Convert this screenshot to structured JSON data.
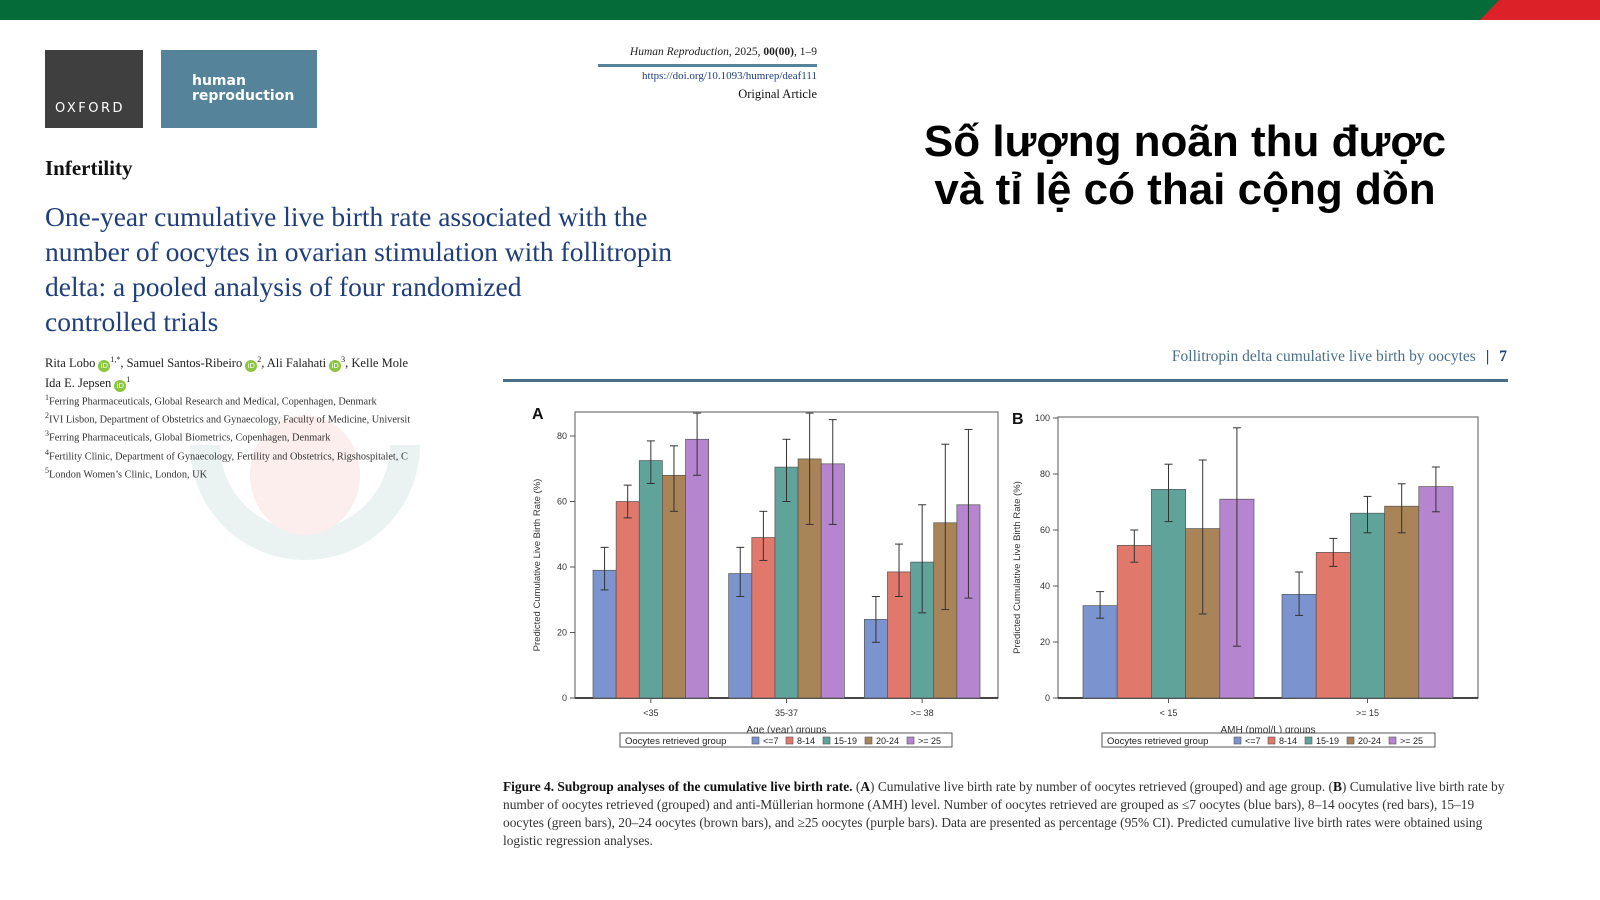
{
  "header": {
    "brand_colors": {
      "green": "#046b39",
      "red": "#dc2228"
    },
    "logo_oxford": "OXFORD",
    "logo_journal": "human reproduction",
    "journal_name": "Human Reproduction",
    "journal_year": ", 2025, ",
    "journal_issue": "00(00)",
    "journal_pages": ", 1–9",
    "doi": "https://doi.org/10.1093/humrep/deaf111",
    "article_type": "Original Article"
  },
  "slide_title": {
    "line1": "Số lượng noãn thu được",
    "line2": "và tỉ lệ có thai cộng dồn"
  },
  "paper": {
    "section": "Infertility",
    "title_lines": [
      "One-year cumulative live birth rate associated with the",
      "number of oocytes in ovarian stimulation with follitropin",
      "delta: a pooled analysis of four randomized",
      "controlled trials"
    ],
    "authors": [
      {
        "name": "Rita Lobo",
        "sup": "1,*",
        "sep": ", "
      },
      {
        "name": "Samuel Santos-Ribeiro",
        "sup": "2",
        "sep": ", "
      },
      {
        "name": "Ali Falahati",
        "sup": "3",
        "sep": ", "
      },
      {
        "name": "Kelle Mole",
        "sup": "",
        "sep": ""
      }
    ],
    "author_line2": {
      "name": "Ida E. Jepsen",
      "sup": "1"
    },
    "orcid_label": "iD",
    "affiliations": [
      {
        "sup": "1",
        "text": "Ferring Pharmaceuticals, Global Research and Medical, Copenhagen, Denmark"
      },
      {
        "sup": "2",
        "text": "IVI Lisbon, Department of Obstetrics and Gynaecology, Faculty of Medicine, Universit"
      },
      {
        "sup": "3",
        "text": "Ferring Pharmaceuticals, Global Biometrics, Copenhagen, Denmark"
      },
      {
        "sup": "4",
        "text": "Fertility Clinic, Department of Gynaecology, Fertility and Obstetrics, Rigshospitalet, C"
      },
      {
        "sup": "5",
        "text": "London Women’s Clinic, London, UK"
      }
    ]
  },
  "running_head": {
    "text": "Follitropin delta cumulative live birth by oocytes",
    "separator": "|",
    "page": "7"
  },
  "chart_data": [
    {
      "type": "bar",
      "panel": "A",
      "title": "",
      "xlabel": "Age (year) groups",
      "ylabel": "Predicted Cumulative Live Birth Rate (%)",
      "ylim": [
        0,
        87
      ],
      "yticks": [
        0,
        20,
        40,
        60,
        80
      ],
      "categories": [
        "<35",
        "35-37",
        ">= 38"
      ],
      "legend_title": "Oocytes retrieved group",
      "legend_position": "bottom",
      "series": [
        {
          "name": "<=7",
          "color": "#7b93cf",
          "values": [
            39,
            38,
            24
          ],
          "ci_low": [
            33,
            31,
            17
          ],
          "ci_high": [
            46,
            46,
            31
          ]
        },
        {
          "name": "8-14",
          "color": "#e0786b",
          "values": [
            60,
            49,
            38.5
          ],
          "ci_low": [
            55,
            42,
            31
          ],
          "ci_high": [
            65,
            57,
            47
          ]
        },
        {
          "name": "15-19",
          "color": "#5fa39a",
          "values": [
            72.5,
            70.5,
            41.5
          ],
          "ci_low": [
            65.5,
            60,
            26
          ],
          "ci_high": [
            78.5,
            79,
            59
          ]
        },
        {
          "name": "20-24",
          "color": "#a88458",
          "values": [
            68,
            73,
            53.5
          ],
          "ci_low": [
            57,
            53,
            27
          ],
          "ci_high": [
            77,
            87,
            77.5
          ]
        },
        {
          "name": ">= 25",
          "color": "#b586cf",
          "values": [
            79,
            71.5,
            59
          ],
          "ci_low": [
            68,
            53,
            30.5
          ],
          "ci_high": [
            87,
            85,
            82
          ]
        }
      ]
    },
    {
      "type": "bar",
      "panel": "B",
      "title": "",
      "xlabel": "AMH (pmol/L) groups",
      "ylabel": "Predicted Cumulative Live Birth Rate (%)",
      "ylim": [
        0,
        100
      ],
      "yticks": [
        0,
        20,
        40,
        60,
        80,
        100
      ],
      "categories": [
        "< 15",
        ">= 15"
      ],
      "legend_title": "Oocytes retrieved group",
      "legend_position": "bottom",
      "series": [
        {
          "name": "<=7",
          "color": "#7b93cf",
          "values": [
            33,
            37
          ],
          "ci_low": [
            28.5,
            29.5
          ],
          "ci_high": [
            38,
            45
          ]
        },
        {
          "name": "8-14",
          "color": "#e0786b",
          "values": [
            54.5,
            52
          ],
          "ci_low": [
            48.5,
            47
          ],
          "ci_high": [
            60,
            57
          ]
        },
        {
          "name": "15-19",
          "color": "#5fa39a",
          "values": [
            74.5,
            66
          ],
          "ci_low": [
            63,
            59
          ],
          "ci_high": [
            83.5,
            72
          ]
        },
        {
          "name": "20-24",
          "color": "#a88458",
          "values": [
            60.5,
            68.5
          ],
          "ci_low": [
            30,
            59
          ],
          "ci_high": [
            85,
            76.5
          ]
        },
        {
          "name": ">= 25",
          "color": "#b586cf",
          "values": [
            71,
            75.5
          ],
          "ci_low": [
            18.5,
            66.5
          ],
          "ci_high": [
            96.5,
            82.5
          ]
        }
      ]
    }
  ],
  "caption": {
    "figure_label": "Figure 4.",
    "bold_title": " Subgroup analyses of the cumulative live birth rate.",
    "body_1": " (",
    "A": "A",
    "body_2": ") Cumulative live birth rate by number of oocytes retrieved (grouped) and age group. (",
    "B": "B",
    "body_3": ") Cumulative live birth rate by number of oocytes retrieved (grouped) and anti-Müllerian hormone (AMH) level. Number of oocytes retrieved are grouped as ≤7 oocytes (blue bars), 8–14 oocytes (red bars), 15–19 oocytes (green bars), 20–24 oocytes (brown bars), and ≥25 oocytes (purple bars). Data are presented as percentage (95% CI). Predicted cumulative live birth rates were obtained using logistic regression analyses."
  }
}
